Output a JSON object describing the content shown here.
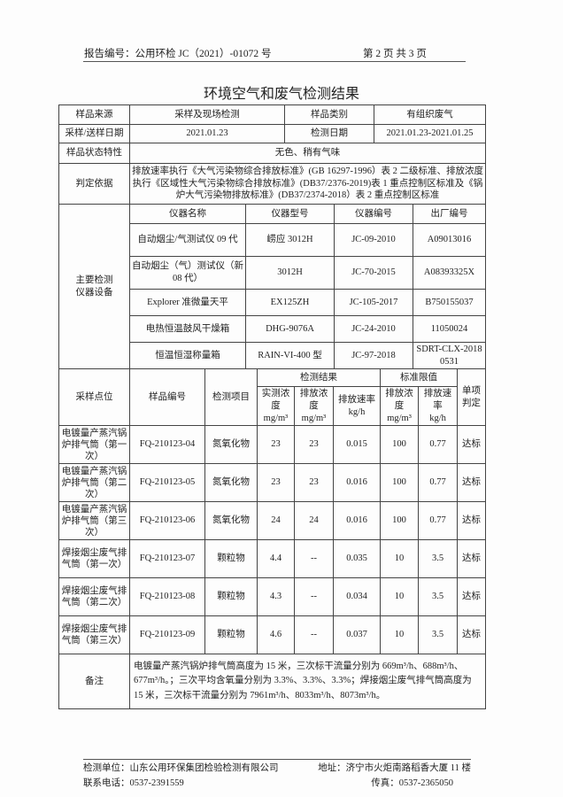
{
  "header": {
    "report_no": "报告编号：公用环检 JC（2021）-01072 号",
    "page": "第 2 页  共 3 页"
  },
  "title": "环境空气和废气检测结果",
  "info": {
    "source_label": "样品来源",
    "source": "采样及现场检测",
    "type_label": "样品类别",
    "type": "有组织废气",
    "sample_date_label": "采样/送样日期",
    "sample_date": "2021.01.23",
    "test_date_label": "检测日期",
    "test_date": "2021.01.23-2021.01.25",
    "state_label": "样品状态特性",
    "state": "无色、稍有气味",
    "basis_label": "判定依据",
    "basis": "排放速率执行《大气污染物综合排放标准》(GB 16297-1996）表 2 二级标准、排放浓度执行《区域性大气污染物综合排放标准》(DB37/2376-2019)表 1 重点控制区标准及《锅炉大气污染物排放标准》(DB37/2374-2018）表 2 重点控制区标准"
  },
  "instruments": {
    "label": "主要检测仪器设备",
    "headers": [
      "仪器名称",
      "仪器型号",
      "仪器编号",
      "出厂编号"
    ],
    "rows": [
      [
        "自动烟尘/气测试仪 09 代",
        "崂应 3012H",
        "JC-09-2010",
        "A09013016"
      ],
      [
        "自动烟尘（气）测试仪（新08 代）",
        "3012H",
        "JC-70-2015",
        "A08393325X"
      ],
      [
        "Explorer 准微量天平",
        "EX125ZH",
        "JC-105-2017",
        "B750155037"
      ],
      [
        "电热恒温鼓风干燥箱",
        "DHG-9076A",
        "JC-24-2010",
        "11050024"
      ],
      [
        "恒温恒湿称量箱",
        "RAIN-VI-400 型",
        "JC-97-2018",
        "SDRT-CLX-20180531"
      ]
    ]
  },
  "results": {
    "headers": {
      "point": "采样点位",
      "sample_no": "样品编号",
      "item": "检测项目",
      "result_group": "检测结果",
      "limit_group": "标准限值",
      "judge": "单项判定",
      "measured_conc": "实测浓度",
      "emission_conc": "排放浓度",
      "emission_rate": "排放速率",
      "limit_conc": "排放浓度",
      "limit_rate": "排放速率",
      "unit_conc": "mg/m³",
      "unit_rate": "kg/h"
    },
    "rows": [
      [
        "电镀量产蒸汽锅炉排气筒（第一次）",
        "FQ-210123-04",
        "氮氧化物",
        "23",
        "23",
        "0.015",
        "100",
        "0.77",
        "达标"
      ],
      [
        "电镀量产蒸汽锅炉排气筒（第二次）",
        "FQ-210123-05",
        "氮氧化物",
        "23",
        "23",
        "0.016",
        "100",
        "0.77",
        "达标"
      ],
      [
        "电镀量产蒸汽锅炉排气筒（第三次）",
        "FQ-210123-06",
        "氮氧化物",
        "24",
        "24",
        "0.016",
        "100",
        "0.77",
        "达标"
      ],
      [
        "焊接烟尘废气排气筒（第一次）",
        "FQ-210123-07",
        "颗粒物",
        "4.4",
        "--",
        "0.035",
        "10",
        "3.5",
        "达标"
      ],
      [
        "焊接烟尘废气排气筒（第二次）",
        "FQ-210123-08",
        "颗粒物",
        "4.3",
        "--",
        "0.034",
        "10",
        "3.5",
        "达标"
      ],
      [
        "焊接烟尘废气排气筒（第三次）",
        "FQ-210123-09",
        "颗粒物",
        "4.6",
        "--",
        "0.037",
        "10",
        "3.5",
        "达标"
      ]
    ]
  },
  "remarks": {
    "label": "备注",
    "text": "电镀量产蒸汽锅炉排气筒高度为 15 米，三次标干流量分别为 669m³/h、688m³/h、677m³/h。；三次平均含氧量分别为 3.3%、3.3%、3.3%；焊接烟尘废气排气筒高度为 15 米，三次标干流量分别为 7961m³/h、8033m³/h、8073m³/h。"
  },
  "footer": {
    "unit": "检测单位：山东公用环保集团检验检测有限公司",
    "address": "地址：济宁市火炬南路稻香大厦 11 楼",
    "phone": "联系电话：0537-2391559",
    "fax": "传真：0537-2365050"
  }
}
